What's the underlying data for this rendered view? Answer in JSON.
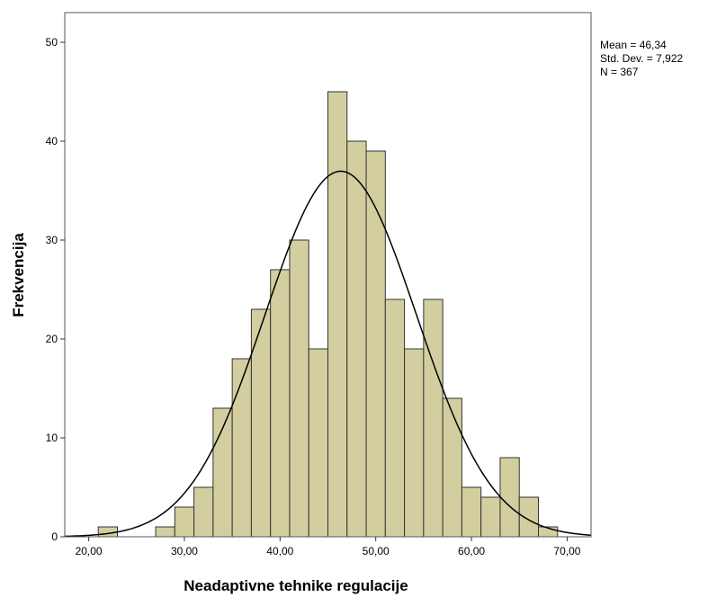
{
  "chart_data": {
    "type": "bar",
    "subtype": "histogram",
    "xlabel": "Neadaptivne tehnike regulacije",
    "ylabel": "Frekvencija",
    "xlim": [
      17.5,
      72.5
    ],
    "ylim": [
      0,
      53
    ],
    "x_ticks": [
      20,
      30,
      40,
      50,
      60,
      70
    ],
    "x_tick_labels": [
      "20,00",
      "30,00",
      "40,00",
      "50,00",
      "60,00",
      "70,00"
    ],
    "y_ticks": [
      0,
      10,
      20,
      30,
      40,
      50
    ],
    "y_tick_labels": [
      "0",
      "10",
      "20",
      "30",
      "40",
      "50"
    ],
    "bin_width": 2,
    "bins": [
      {
        "start": 21,
        "count": 1
      },
      {
        "start": 23,
        "count": 0
      },
      {
        "start": 25,
        "count": 0
      },
      {
        "start": 27,
        "count": 1
      },
      {
        "start": 29,
        "count": 3
      },
      {
        "start": 31,
        "count": 5
      },
      {
        "start": 33,
        "count": 13
      },
      {
        "start": 35,
        "count": 18
      },
      {
        "start": 37,
        "count": 23
      },
      {
        "start": 39,
        "count": 27
      },
      {
        "start": 41,
        "count": 30
      },
      {
        "start": 43,
        "count": 19
      },
      {
        "start": 45,
        "count": 45
      },
      {
        "start": 47,
        "count": 40
      },
      {
        "start": 49,
        "count": 39
      },
      {
        "start": 51,
        "count": 24
      },
      {
        "start": 53,
        "count": 19
      },
      {
        "start": 55,
        "count": 24
      },
      {
        "start": 57,
        "count": 14
      },
      {
        "start": 59,
        "count": 5
      },
      {
        "start": 61,
        "count": 4
      },
      {
        "start": 63,
        "count": 8
      },
      {
        "start": 65,
        "count": 4
      },
      {
        "start": 67,
        "count": 1
      }
    ],
    "normal_curve": {
      "mean": 46.34,
      "sd": 7.922,
      "n": 367
    },
    "bar_color": "#d3ce9f",
    "bar_edge_color": "#333333",
    "curve_color": "#000000",
    "frame_color": "#555555",
    "stats": {
      "mean": "Mean = 46,34",
      "sd": "Std. Dev. = 7,922",
      "n": "N = 367"
    }
  }
}
